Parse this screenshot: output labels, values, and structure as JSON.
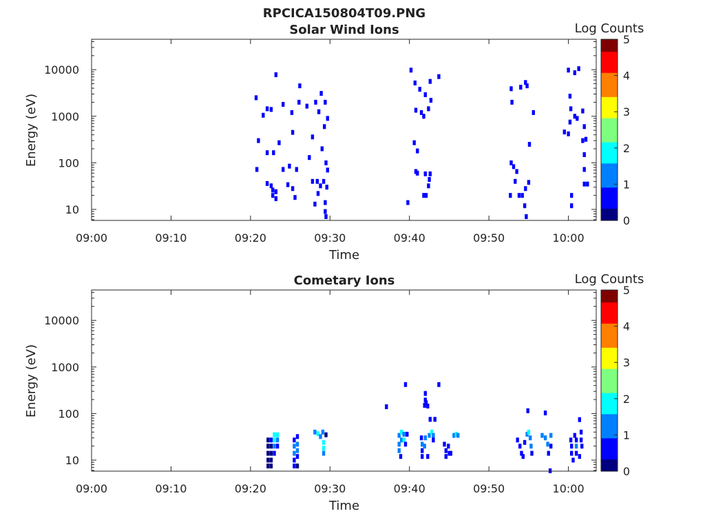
{
  "figure_title": "RPCICA150804T09.PNG",
  "colormap": [
    "#00007f",
    "#0000ff",
    "#007fff",
    "#00ffff",
    "#7fff7f",
    "#ffff00",
    "#ff7f00",
    "#ff0000",
    "#7f0000"
  ],
  "chart_data": [
    {
      "type": "heatmap",
      "title": "Solar Wind Ions",
      "xlabel": "Time",
      "ylabel": "Energy (eV)",
      "colorbar_label": "Log Counts",
      "x_ticks": [
        "09:00",
        "09:10",
        "09:20",
        "09:30",
        "09:40",
        "09:50",
        "10:00"
      ],
      "y_ticks": [
        "10",
        "100",
        "1000",
        "10000"
      ],
      "colorbar_ticks": [
        "0",
        "1",
        "2",
        "3",
        "4",
        "5"
      ],
      "xlim_minutes": [
        0,
        63.5
      ],
      "ylim_eV": [
        5.8,
        45000
      ],
      "y_scale": "log",
      "clim": [
        0,
        5
      ],
      "cells_format": "[minute_after_09:00, energy_eV, log_counts]",
      "cells": [
        [
          20.7,
          2500,
          0.6
        ],
        [
          21.0,
          300,
          0.6
        ],
        [
          20.8,
          72,
          0.6
        ],
        [
          21.6,
          1050,
          0.6
        ],
        [
          22.1,
          1450,
          0.6
        ],
        [
          22.6,
          1400,
          0.6
        ],
        [
          23.2,
          7800,
          0.6
        ],
        [
          22.1,
          165,
          0.6
        ],
        [
          22.9,
          165,
          0.6
        ],
        [
          23.6,
          270,
          0.6
        ],
        [
          24.1,
          1800,
          0.6
        ],
        [
          25.2,
          1200,
          0.6
        ],
        [
          25.3,
          450,
          0.6
        ],
        [
          24.1,
          72,
          0.6
        ],
        [
          24.9,
          85,
          0.6
        ],
        [
          25.8,
          72,
          0.6
        ],
        [
          26.1,
          2000,
          0.6
        ],
        [
          26.2,
          4500,
          0.6
        ],
        [
          27.1,
          1650,
          0.6
        ],
        [
          28.2,
          2000,
          0.6
        ],
        [
          27.4,
          130,
          0.6
        ],
        [
          27.8,
          360,
          0.6
        ],
        [
          28.6,
          1250,
          0.6
        ],
        [
          28.9,
          3100,
          0.6
        ],
        [
          29.4,
          2000,
          0.6
        ],
        [
          29.3,
          600,
          0.6
        ],
        [
          29.7,
          900,
          0.6
        ],
        [
          29.0,
          200,
          0.6
        ],
        [
          29.5,
          100,
          0.6
        ],
        [
          29.7,
          70,
          0.6
        ],
        [
          22.1,
          36,
          0.6
        ],
        [
          22.6,
          32,
          0.6
        ],
        [
          22.8,
          26,
          0.6
        ],
        [
          23.2,
          24,
          0.6
        ],
        [
          22.8,
          20,
          0.6
        ],
        [
          23.2,
          17,
          0.6
        ],
        [
          24.7,
          34,
          0.6
        ],
        [
          25.3,
          28,
          0.6
        ],
        [
          25.6,
          18,
          0.6
        ],
        [
          27.8,
          40,
          0.6
        ],
        [
          28.4,
          40,
          0.6
        ],
        [
          28.8,
          32,
          0.6
        ],
        [
          29.2,
          40,
          0.6
        ],
        [
          29.6,
          30,
          0.6
        ],
        [
          28.5,
          22,
          0.6
        ],
        [
          28.1,
          13,
          0.6
        ],
        [
          29.4,
          14,
          0.6
        ],
        [
          29.4,
          9,
          0.6
        ],
        [
          29.5,
          7,
          0.6
        ],
        [
          40.2,
          9800,
          0.6
        ],
        [
          40.7,
          5200,
          0.6
        ],
        [
          41.3,
          3800,
          0.6
        ],
        [
          42.0,
          2900,
          0.6
        ],
        [
          42.6,
          5600,
          0.6
        ],
        [
          43.7,
          7100,
          0.6
        ],
        [
          40.8,
          1350,
          0.6
        ],
        [
          41.5,
          1200,
          0.6
        ],
        [
          41.8,
          1000,
          0.6
        ],
        [
          42.4,
          1450,
          0.6
        ],
        [
          42.7,
          2200,
          0.6
        ],
        [
          40.6,
          270,
          0.6
        ],
        [
          41.0,
          180,
          0.6
        ],
        [
          40.8,
          65,
          0.6
        ],
        [
          41.0,
          60,
          0.6
        ],
        [
          42.0,
          58,
          0.6
        ],
        [
          42.6,
          58,
          0.6
        ],
        [
          41.8,
          20,
          0.6
        ],
        [
          42.1,
          20,
          0.6
        ],
        [
          42.4,
          32,
          0.6
        ],
        [
          42.5,
          44,
          0.6
        ],
        [
          39.8,
          14,
          0.6
        ],
        [
          52.8,
          3900,
          0.6
        ],
        [
          54.0,
          4200,
          0.6
        ],
        [
          54.6,
          5300,
          0.6
        ],
        [
          54.8,
          4500,
          0.6
        ],
        [
          52.9,
          2000,
          0.6
        ],
        [
          55.6,
          1200,
          0.6
        ],
        [
          52.8,
          100,
          0.6
        ],
        [
          53.1,
          83,
          0.6
        ],
        [
          53.5,
          65,
          0.6
        ],
        [
          53.3,
          40,
          0.6
        ],
        [
          52.7,
          20,
          0.6
        ],
        [
          53.8,
          20,
          0.6
        ],
        [
          54.2,
          20,
          0.6
        ],
        [
          54.6,
          28,
          0.6
        ],
        [
          55.0,
          38,
          0.6
        ],
        [
          55.1,
          250,
          0.6
        ],
        [
          54.5,
          12,
          0.6
        ],
        [
          54.7,
          7,
          0.6
        ],
        [
          60.0,
          9800,
          0.6
        ],
        [
          61.3,
          10500,
          0.6
        ],
        [
          60.8,
          8600,
          0.6
        ],
        [
          60.2,
          2700,
          0.6
        ],
        [
          60.3,
          1450,
          0.6
        ],
        [
          60.2,
          750,
          0.6
        ],
        [
          59.5,
          460,
          0.6
        ],
        [
          60.8,
          1000,
          0.6
        ],
        [
          61.1,
          900,
          0.6
        ],
        [
          62.0,
          600,
          0.6
        ],
        [
          61.8,
          1300,
          0.6
        ],
        [
          60.0,
          420,
          0.6
        ],
        [
          61.8,
          300,
          0.6
        ],
        [
          62.2,
          320,
          0.6
        ],
        [
          62.0,
          150,
          0.6
        ],
        [
          62.0,
          72,
          0.6
        ],
        [
          60.4,
          20,
          0.6
        ],
        [
          60.4,
          12,
          0.6
        ],
        [
          62.0,
          35,
          0.6
        ],
        [
          62.4,
          35,
          0.6
        ]
      ]
    },
    {
      "type": "heatmap",
      "title": "Cometary Ions",
      "xlabel": "Time",
      "ylabel": "Energy (eV)",
      "colorbar_label": "Log Counts",
      "x_ticks": [
        "09:00",
        "09:10",
        "09:20",
        "09:30",
        "09:40",
        "09:50",
        "10:00"
      ],
      "y_ticks": [
        "10",
        "100",
        "1000",
        "10000"
      ],
      "colorbar_ticks": [
        "0",
        "1",
        "2",
        "3",
        "4",
        "5"
      ],
      "xlim_minutes": [
        0,
        63.5
      ],
      "ylim_eV": [
        5.8,
        45000
      ],
      "y_scale": "log",
      "clim": [
        0,
        5
      ],
      "cells_format": "[minute_after_09:00, energy_eV, log_counts]",
      "cells": [
        [
          22.2,
          27,
          0.3
        ],
        [
          22.2,
          20,
          0.3
        ],
        [
          22.2,
          14,
          0.3
        ],
        [
          22.2,
          10,
          0.3
        ],
        [
          22.2,
          7.5,
          0.3
        ],
        [
          22.6,
          27,
          0.5
        ],
        [
          22.6,
          20,
          0.3
        ],
        [
          22.6,
          14,
          0.3
        ],
        [
          22.6,
          10,
          0.3
        ],
        [
          22.6,
          7.5,
          0.3
        ],
        [
          23.0,
          35,
          1.6
        ],
        [
          23.0,
          27,
          2.1
        ],
        [
          23.0,
          20,
          1.2
        ],
        [
          23.0,
          14,
          0.8
        ],
        [
          23.4,
          35,
          1.6
        ],
        [
          23.4,
          27,
          1.0
        ],
        [
          23.4,
          20,
          0.9
        ],
        [
          25.5,
          27,
          0.8
        ],
        [
          25.5,
          20,
          1.1
        ],
        [
          25.5,
          14,
          1.3
        ],
        [
          25.5,
          10,
          0.4
        ],
        [
          25.5,
          7.5,
          0.4
        ],
        [
          25.9,
          32,
          0.6
        ],
        [
          25.9,
          22,
          1.3
        ],
        [
          25.9,
          16,
          1.0
        ],
        [
          25.9,
          12,
          0.8
        ],
        [
          25.9,
          7.5,
          0.3
        ],
        [
          28.1,
          40,
          1.5
        ],
        [
          28.5,
          37,
          1.9
        ],
        [
          28.8,
          32,
          1.3
        ],
        [
          29.1,
          40,
          1.5
        ],
        [
          29.2,
          24,
          1.7
        ],
        [
          29.2,
          18,
          1.9
        ],
        [
          29.2,
          14,
          1.0
        ],
        [
          29.5,
          35,
          0.3
        ],
        [
          37.1,
          140,
          0.4
        ],
        [
          39.5,
          420,
          0.4
        ],
        [
          42.0,
          270,
          0.4
        ],
        [
          42.0,
          195,
          0.4
        ],
        [
          42.1,
          170,
          0.4
        ],
        [
          42.3,
          145,
          0.4
        ],
        [
          41.9,
          150,
          0.4
        ],
        [
          43.7,
          420,
          0.4
        ],
        [
          42.6,
          75,
          0.4
        ],
        [
          43.2,
          75,
          0.4
        ],
        [
          38.7,
          34,
          1.0
        ],
        [
          39.0,
          40,
          1.7
        ],
        [
          39.0,
          27,
          1.4
        ],
        [
          38.7,
          22,
          1.0
        ],
        [
          38.7,
          16,
          1.2
        ],
        [
          38.9,
          12,
          0.7
        ],
        [
          39.3,
          36,
          1.2
        ],
        [
          39.3,
          27,
          1.7
        ],
        [
          39.5,
          22,
          0.9
        ],
        [
          39.7,
          36,
          0.8
        ],
        [
          41.5,
          30,
          0.7
        ],
        [
          41.6,
          22,
          1.2
        ],
        [
          41.6,
          16,
          0.8
        ],
        [
          41.6,
          12,
          0.4
        ],
        [
          42.0,
          30,
          1.0
        ],
        [
          41.9,
          20,
          1.0
        ],
        [
          42.3,
          12,
          0.6
        ],
        [
          42.5,
          34,
          1.5
        ],
        [
          42.8,
          40,
          1.8
        ],
        [
          43.0,
          34,
          1.2
        ],
        [
          43.0,
          27,
          0.9
        ],
        [
          44.4,
          22,
          0.6
        ],
        [
          44.6,
          16,
          0.5
        ],
        [
          44.6,
          12,
          0.4
        ],
        [
          44.9,
          20,
          0.8
        ],
        [
          45.0,
          14,
          0.5
        ],
        [
          45.2,
          14,
          0.5
        ],
        [
          45.6,
          34,
          1.4
        ],
        [
          45.9,
          36,
          1.6
        ],
        [
          46.1,
          34,
          1.0
        ],
        [
          53.6,
          27,
          0.6
        ],
        [
          53.9,
          20,
          0.9
        ],
        [
          54.1,
          14,
          0.7
        ],
        [
          54.3,
          12,
          0.6
        ],
        [
          54.5,
          24,
          0.8
        ],
        [
          54.8,
          36,
          1.4
        ],
        [
          55.0,
          40,
          1.7
        ],
        [
          55.2,
          30,
          1.2
        ],
        [
          55.3,
          20,
          1.0
        ],
        [
          55.4,
          14,
          0.6
        ],
        [
          54.9,
          115,
          0.6
        ],
        [
          56.7,
          34,
          1.0
        ],
        [
          57.1,
          30,
          1.5
        ],
        [
          57.4,
          22,
          1.1
        ],
        [
          57.5,
          14,
          0.8
        ],
        [
          57.8,
          34,
          1.2
        ],
        [
          57.8,
          20,
          0.9
        ],
        [
          57.1,
          103,
          0.6
        ],
        [
          57.7,
          5.9,
          0.4
        ],
        [
          60.3,
          27,
          0.8
        ],
        [
          60.4,
          20,
          0.9
        ],
        [
          60.4,
          14,
          0.9
        ],
        [
          60.6,
          10,
          0.8
        ],
        [
          60.8,
          34,
          0.9
        ],
        [
          61.0,
          27,
          0.8
        ],
        [
          61.0,
          20,
          1.0
        ],
        [
          61.0,
          14,
          0.8
        ],
        [
          61.4,
          74,
          0.6
        ],
        [
          61.6,
          40,
          0.9
        ],
        [
          61.6,
          27,
          0.8
        ],
        [
          61.7,
          20,
          0.7
        ],
        [
          61.4,
          12,
          0.6
        ]
      ]
    }
  ]
}
